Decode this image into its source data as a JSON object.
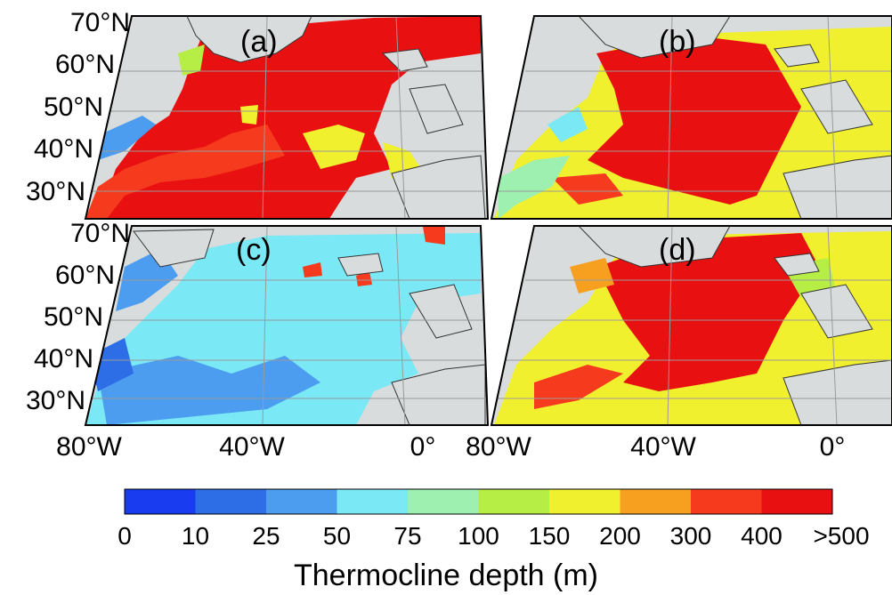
{
  "panels": [
    {
      "label": "(a)",
      "key": "a"
    },
    {
      "label": "(b)",
      "key": "b"
    },
    {
      "label": "(c)",
      "key": "c"
    },
    {
      "label": "(d)",
      "key": "d"
    }
  ],
  "lat_labels": [
    "70°N",
    "60°N",
    "50°N",
    "40°N",
    "30°N"
  ],
  "lon_labels_left": [
    "80°W",
    "40°W",
    "0°"
  ],
  "lon_labels_right": [
    "80°W",
    "40°W",
    "0°"
  ],
  "colorbar": {
    "ticks": [
      "0",
      "10",
      "25",
      "50",
      "75",
      "100",
      "150",
      "200",
      "300",
      "400",
      ">500"
    ],
    "colors": [
      "#1a3cf0",
      "#2d6ee6",
      "#4c9cf0",
      "#7be8f5",
      "#9ef0b0",
      "#b6ee45",
      "#f0f02e",
      "#f7a020",
      "#f53a1e",
      "#e81010"
    ],
    "title": "Thermocline depth (m)"
  },
  "land_color": "#d8dcdc",
  "chart_data": {
    "type": "heatmap",
    "title": "",
    "xlabel": "",
    "ylabel": "",
    "colorbar_label": "Thermocline depth (m)",
    "colorbar_bins_m": [
      0,
      10,
      25,
      50,
      75,
      100,
      150,
      200,
      300,
      400,
      500
    ],
    "panels": [
      "(a)",
      "(b)",
      "(c)",
      "(d)"
    ],
    "x_ticks": [
      "80°W",
      "40°W",
      "0°"
    ],
    "y_ticks": [
      "70°N",
      "60°N",
      "50°N",
      "40°N",
      "30°N"
    ]
  }
}
